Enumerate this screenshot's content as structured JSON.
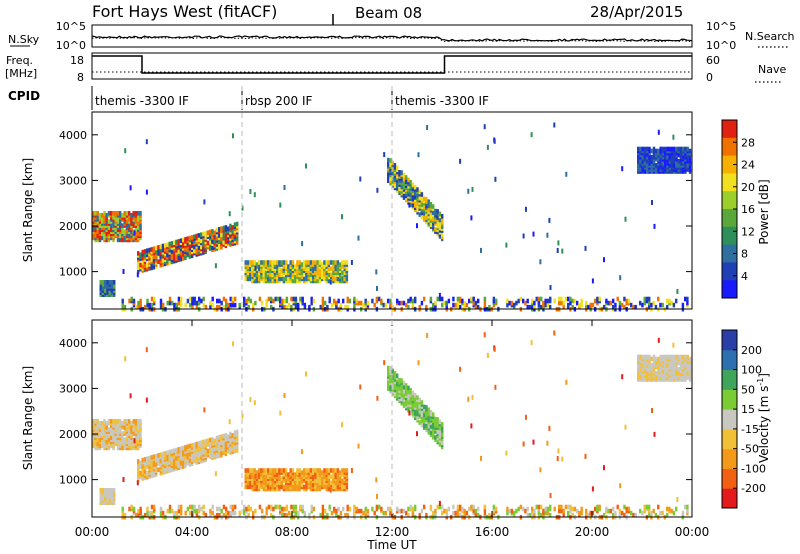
{
  "chart_data": [
    {
      "type": "line",
      "panel": "summary-noise",
      "title": "Fort Hays West (fitACF)",
      "beam_label": "Beam 08",
      "date": "28/Apr/2015",
      "left_label": "N.Sky",
      "right_label": "N.Search",
      "y_ticks_left": [
        "10^5",
        "10^0"
      ],
      "y_ticks_right": [
        "10^5",
        "10^0"
      ],
      "series": [
        {
          "name": "N.Sky",
          "style": "solid"
        },
        {
          "name": "N.Search",
          "style": "dotted"
        }
      ]
    },
    {
      "type": "line",
      "panel": "summary-frequency",
      "left_label": [
        "Freq.",
        "[MHz]"
      ],
      "right_label": "Nave",
      "y_ticks_left": [
        "18",
        "8"
      ],
      "y_ticks_right": [
        "60",
        "0"
      ],
      "freq_steps": [
        {
          "from": 0,
          "to": 2,
          "level": "high"
        },
        {
          "from": 2,
          "to": 14.1,
          "level": "low"
        },
        {
          "from": 14.1,
          "to": 24,
          "level": "high"
        }
      ]
    },
    {
      "type": "annotation",
      "panel": "cpid",
      "label": "CPID",
      "segments": [
        {
          "start_h": 0,
          "end_h": 6,
          "text": "themis -3300 IF"
        },
        {
          "start_h": 6,
          "end_h": 12,
          "text": "rbsp 200 IF"
        },
        {
          "start_h": 12,
          "end_h": 24,
          "text": "themis -3300 IF"
        }
      ]
    },
    {
      "type": "heatmap",
      "panel": "power",
      "ylabel": "Slant Range [km]",
      "y_ticks": [
        1000,
        2000,
        3000,
        4000
      ],
      "ylim": [
        180,
        4500
      ],
      "xlim_hours": [
        0,
        24
      ],
      "colorbar_label": "Power [dB]",
      "colorbar_ticks": [
        4,
        8,
        12,
        16,
        20,
        24,
        28
      ],
      "colorbar_range": [
        0,
        32
      ]
    },
    {
      "type": "heatmap",
      "panel": "velocity",
      "ylabel": "Slant Range [km]",
      "y_ticks": [
        1000,
        2000,
        3000,
        4000
      ],
      "ylim": [
        180,
        4500
      ],
      "xlim_hours": [
        0,
        24
      ],
      "xlabel": "Time UT",
      "x_ticks": [
        "00:00",
        "04:00",
        "08:00",
        "12:00",
        "16:00",
        "20:00",
        "00:00"
      ],
      "colorbar_label": "Velocity [m s^-1]",
      "colorbar_ticks": [
        200,
        100,
        50,
        15,
        -15,
        -50,
        -100,
        -200
      ]
    }
  ],
  "colors": {
    "power_scale": [
      "#1a1aff",
      "#1e3fb5",
      "#2f6fa0",
      "#2f8f5a",
      "#5aa83c",
      "#9ccf2c",
      "#f0e020",
      "#f5b000",
      "#f07000",
      "#e02010"
    ],
    "velocity_scale": [
      "#e41a1c",
      "#f26014",
      "#f39a1a",
      "#f2c037",
      "#c8c8c0",
      "#7acb34",
      "#3ea55b",
      "#2e6fb0",
      "#2a3ea8"
    ]
  }
}
